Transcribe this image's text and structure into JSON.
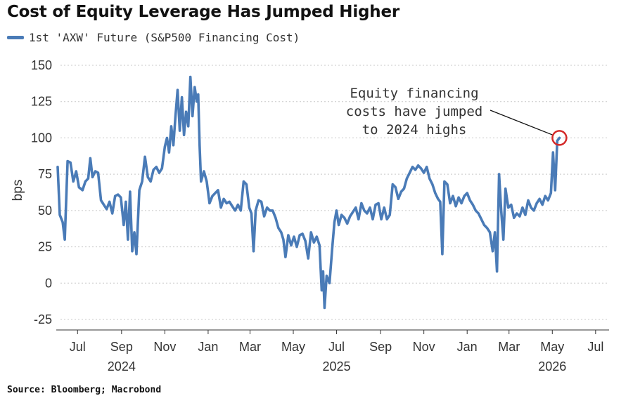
{
  "header": {
    "title": "Cost of Equity Leverage Has Jumped Higher",
    "source": "Source: Bloomberg; Macrobond"
  },
  "chart_data": {
    "type": "line",
    "title": "Cost of Equity Leverage Has Jumped Higher",
    "xlabel": "",
    "ylabel": "bps",
    "ylim": [
      -25,
      150
    ],
    "yticks": [
      150,
      125,
      100,
      75,
      50,
      25,
      0,
      -25
    ],
    "xlim": [
      "2024-06-01",
      "2026-07-20"
    ],
    "xticks": [
      {
        "label": "Jul",
        "date": "2024-07-01"
      },
      {
        "label": "Sep",
        "date": "2024-09-01"
      },
      {
        "label": "Nov",
        "date": "2024-11-01"
      },
      {
        "label": "Jan",
        "date": "2025-01-01"
      },
      {
        "label": "Mar",
        "date": "2025-03-01"
      },
      {
        "label": "May",
        "date": "2025-05-01"
      },
      {
        "label": "Jul",
        "date": "2025-07-01"
      },
      {
        "label": "Sep",
        "date": "2025-09-01"
      },
      {
        "label": "Nov",
        "date": "2025-11-01"
      },
      {
        "label": "Jan",
        "date": "2026-01-01"
      },
      {
        "label": "Mar",
        "date": "2026-03-01"
      },
      {
        "label": "May",
        "date": "2026-05-01"
      },
      {
        "label": "Jul",
        "date": "2026-07-01"
      }
    ],
    "year_labels": [
      {
        "label": "2024",
        "date": "2024-09-01"
      },
      {
        "label": "2025",
        "date": "2025-07-01"
      },
      {
        "label": "2026",
        "date": "2026-05-01"
      }
    ],
    "grid": "horizontal dotted",
    "legend": "top-left",
    "series": [
      {
        "name": "1st 'AXW' Future (S&P500 Financing Cost)",
        "color": "#4a7bb7",
        "points": [
          [
            "2024-06-03",
            80
          ],
          [
            "2024-06-06",
            47
          ],
          [
            "2024-06-10",
            42
          ],
          [
            "2024-06-13",
            30
          ],
          [
            "2024-06-17",
            84
          ],
          [
            "2024-06-21",
            83
          ],
          [
            "2024-06-25",
            70
          ],
          [
            "2024-06-29",
            77
          ],
          [
            "2024-07-03",
            66
          ],
          [
            "2024-07-08",
            64
          ],
          [
            "2024-07-12",
            70
          ],
          [
            "2024-07-16",
            72
          ],
          [
            "2024-07-19",
            86
          ],
          [
            "2024-07-22",
            73
          ],
          [
            "2024-07-26",
            77
          ],
          [
            "2024-07-30",
            76
          ],
          [
            "2024-08-03",
            57
          ],
          [
            "2024-08-07",
            54
          ],
          [
            "2024-08-11",
            51
          ],
          [
            "2024-08-15",
            56
          ],
          [
            "2024-08-19",
            48
          ],
          [
            "2024-08-23",
            60
          ],
          [
            "2024-08-27",
            61
          ],
          [
            "2024-08-31",
            59
          ],
          [
            "2024-09-04",
            40
          ],
          [
            "2024-09-07",
            56
          ],
          [
            "2024-09-10",
            30
          ],
          [
            "2024-09-13",
            63
          ],
          [
            "2024-09-16",
            22
          ],
          [
            "2024-09-19",
            35
          ],
          [
            "2024-09-22",
            20
          ],
          [
            "2024-09-26",
            64
          ],
          [
            "2024-09-30",
            70
          ],
          [
            "2024-10-04",
            87
          ],
          [
            "2024-10-08",
            73
          ],
          [
            "2024-10-12",
            70
          ],
          [
            "2024-10-16",
            78
          ],
          [
            "2024-10-20",
            80
          ],
          [
            "2024-10-24",
            76
          ],
          [
            "2024-10-28",
            79
          ],
          [
            "2024-11-01",
            94
          ],
          [
            "2024-11-04",
            100
          ],
          [
            "2024-11-07",
            90
          ],
          [
            "2024-11-10",
            108
          ],
          [
            "2024-11-13",
            95
          ],
          [
            "2024-11-16",
            115
          ],
          [
            "2024-11-19",
            133
          ],
          [
            "2024-11-22",
            105
          ],
          [
            "2024-11-25",
            128
          ],
          [
            "2024-11-28",
            102
          ],
          [
            "2024-12-01",
            118
          ],
          [
            "2024-12-04",
            108
          ],
          [
            "2024-12-07",
            142
          ],
          [
            "2024-12-10",
            115
          ],
          [
            "2024-12-13",
            135
          ],
          [
            "2024-12-16",
            125
          ],
          [
            "2024-12-18",
            130
          ],
          [
            "2024-12-20",
            95
          ],
          [
            "2024-12-22",
            70
          ],
          [
            "2024-12-26",
            77
          ],
          [
            "2024-12-30",
            70
          ],
          [
            "2025-01-03",
            55
          ],
          [
            "2025-01-07",
            60
          ],
          [
            "2025-01-11",
            62
          ],
          [
            "2025-01-15",
            64
          ],
          [
            "2025-01-19",
            52
          ],
          [
            "2025-01-23",
            58
          ],
          [
            "2025-01-27",
            55
          ],
          [
            "2025-01-31",
            56
          ],
          [
            "2025-02-04",
            53
          ],
          [
            "2025-02-08",
            50
          ],
          [
            "2025-02-12",
            54
          ],
          [
            "2025-02-16",
            50
          ],
          [
            "2025-02-20",
            70
          ],
          [
            "2025-02-24",
            68
          ],
          [
            "2025-02-28",
            52
          ],
          [
            "2025-03-03",
            48
          ],
          [
            "2025-03-06",
            22
          ],
          [
            "2025-03-09",
            50
          ],
          [
            "2025-03-13",
            57
          ],
          [
            "2025-03-17",
            56
          ],
          [
            "2025-03-21",
            46
          ],
          [
            "2025-03-25",
            52
          ],
          [
            "2025-03-29",
            50
          ],
          [
            "2025-04-02",
            50
          ],
          [
            "2025-04-06",
            45
          ],
          [
            "2025-04-10",
            38
          ],
          [
            "2025-04-14",
            35
          ],
          [
            "2025-04-17",
            30
          ],
          [
            "2025-04-20",
            18
          ],
          [
            "2025-04-24",
            33
          ],
          [
            "2025-04-28",
            26
          ],
          [
            "2025-05-02",
            32
          ],
          [
            "2025-05-06",
            25
          ],
          [
            "2025-05-10",
            33
          ],
          [
            "2025-05-14",
            34
          ],
          [
            "2025-05-18",
            29
          ],
          [
            "2025-05-22",
            17
          ],
          [
            "2025-05-26",
            35
          ],
          [
            "2025-05-30",
            28
          ],
          [
            "2025-06-03",
            32
          ],
          [
            "2025-06-07",
            26
          ],
          [
            "2025-06-10",
            -5
          ],
          [
            "2025-06-12",
            8
          ],
          [
            "2025-06-14",
            -17
          ],
          [
            "2025-06-17",
            5
          ],
          [
            "2025-06-21",
            0
          ],
          [
            "2025-06-25",
            25
          ],
          [
            "2025-06-28",
            42
          ],
          [
            "2025-07-01",
            50
          ],
          [
            "2025-07-04",
            40
          ],
          [
            "2025-07-08",
            47
          ],
          [
            "2025-07-12",
            45
          ],
          [
            "2025-07-16",
            41
          ],
          [
            "2025-07-20",
            46
          ],
          [
            "2025-07-24",
            49
          ],
          [
            "2025-07-28",
            52
          ],
          [
            "2025-08-01",
            44
          ],
          [
            "2025-08-05",
            55
          ],
          [
            "2025-08-09",
            50
          ],
          [
            "2025-08-13",
            48
          ],
          [
            "2025-08-17",
            52
          ],
          [
            "2025-08-21",
            44
          ],
          [
            "2025-08-25",
            54
          ],
          [
            "2025-08-29",
            55
          ],
          [
            "2025-09-02",
            44
          ],
          [
            "2025-09-06",
            52
          ],
          [
            "2025-09-10",
            44
          ],
          [
            "2025-09-14",
            47
          ],
          [
            "2025-09-18",
            68
          ],
          [
            "2025-09-22",
            66
          ],
          [
            "2025-09-26",
            58
          ],
          [
            "2025-09-30",
            63
          ],
          [
            "2025-10-04",
            65
          ],
          [
            "2025-10-08",
            72
          ],
          [
            "2025-10-12",
            76
          ],
          [
            "2025-10-16",
            80
          ],
          [
            "2025-10-20",
            78
          ],
          [
            "2025-10-24",
            81
          ],
          [
            "2025-10-28",
            79
          ],
          [
            "2025-11-01",
            76
          ],
          [
            "2025-11-05",
            80
          ],
          [
            "2025-11-09",
            72
          ],
          [
            "2025-11-13",
            68
          ],
          [
            "2025-11-17",
            62
          ],
          [
            "2025-11-21",
            58
          ],
          [
            "2025-11-24",
            56
          ],
          [
            "2025-11-27",
            20
          ],
          [
            "2025-11-30",
            70
          ],
          [
            "2025-12-04",
            68
          ],
          [
            "2025-12-08",
            55
          ],
          [
            "2025-12-12",
            60
          ],
          [
            "2025-12-16",
            53
          ],
          [
            "2025-12-20",
            59
          ],
          [
            "2025-12-24",
            55
          ],
          [
            "2025-12-28",
            60
          ],
          [
            "2026-01-01",
            62
          ],
          [
            "2026-01-05",
            57
          ],
          [
            "2026-01-09",
            54
          ],
          [
            "2026-01-13",
            50
          ],
          [
            "2026-01-17",
            48
          ],
          [
            "2026-01-21",
            44
          ],
          [
            "2026-01-25",
            40
          ],
          [
            "2026-01-29",
            38
          ],
          [
            "2026-02-02",
            35
          ],
          [
            "2026-02-06",
            22
          ],
          [
            "2026-02-09",
            35
          ],
          [
            "2026-02-12",
            8
          ],
          [
            "2026-02-15",
            75
          ],
          [
            "2026-02-18",
            50
          ],
          [
            "2026-02-21",
            30
          ],
          [
            "2026-02-24",
            65
          ],
          [
            "2026-02-28",
            52
          ],
          [
            "2026-03-04",
            54
          ],
          [
            "2026-03-08",
            45
          ],
          [
            "2026-03-12",
            48
          ],
          [
            "2026-03-16",
            46
          ],
          [
            "2026-03-20",
            52
          ],
          [
            "2026-03-24",
            47
          ],
          [
            "2026-03-28",
            57
          ],
          [
            "2026-04-01",
            52
          ],
          [
            "2026-04-05",
            50
          ],
          [
            "2026-04-09",
            55
          ],
          [
            "2026-04-13",
            58
          ],
          [
            "2026-04-17",
            54
          ],
          [
            "2026-04-21",
            60
          ],
          [
            "2026-04-25",
            57
          ],
          [
            "2026-04-29",
            62
          ],
          [
            "2026-05-02",
            90
          ],
          [
            "2026-05-05",
            64
          ],
          [
            "2026-05-08",
            98
          ],
          [
            "2026-05-11",
            100
          ]
        ]
      }
    ],
    "annotations": [
      {
        "lines": [
          "Equity financing",
          "costs have jumped",
          "to 2024 highs"
        ],
        "target": [
          "2026-05-11",
          100
        ],
        "marker": "circle",
        "marker_color": "#d42a2a"
      }
    ]
  }
}
